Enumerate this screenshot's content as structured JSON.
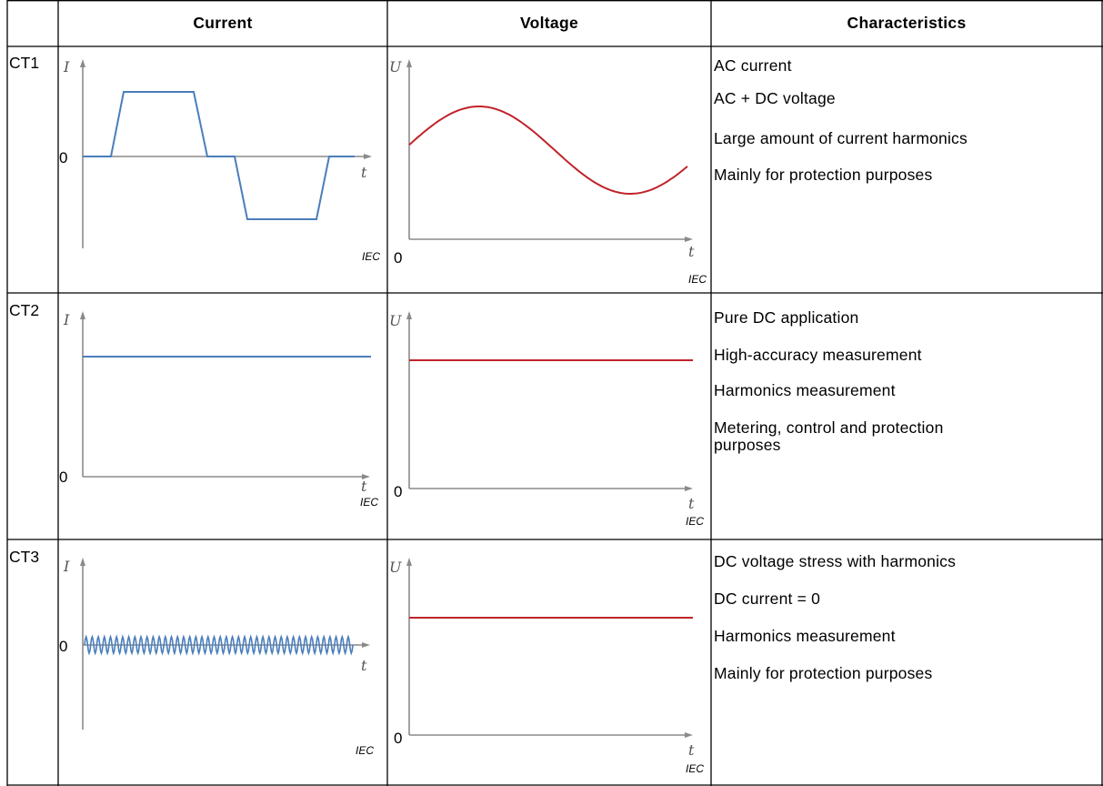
{
  "headers": {
    "current": "Current",
    "voltage": "Voltage",
    "characteristics": "Characteristics"
  },
  "rows": [
    {
      "label": "CT1",
      "current_chart": {
        "axis_y": "I",
        "axis_x": "t",
        "zero": "0",
        "source": "IEC"
      },
      "voltage_chart": {
        "axis_y": "U",
        "axis_x": "t",
        "zero": "0",
        "source": "IEC"
      },
      "characteristics": [
        "AC current",
        "AC + DC voltage",
        "Large amount of current harmonics",
        "Mainly for protection purposes"
      ]
    },
    {
      "label": "CT2",
      "current_chart": {
        "axis_y": "I",
        "axis_x": "t",
        "zero": "0",
        "source": "IEC"
      },
      "voltage_chart": {
        "axis_y": "U",
        "axis_x": "t",
        "zero": "0",
        "source": "IEC"
      },
      "characteristics": [
        "Pure DC application",
        "High-accuracy measurement",
        "Harmonics measurement",
        "Metering, control and protection",
        "purposes"
      ]
    },
    {
      "label": "CT3",
      "current_chart": {
        "axis_y": "I",
        "axis_x": "t",
        "zero": "0",
        "source": "IEC"
      },
      "voltage_chart": {
        "axis_y": "U",
        "axis_x": "t",
        "zero": "0",
        "source": "IEC"
      },
      "characteristics": [
        "DC voltage stress with harmonics",
        "DC current = 0",
        "Harmonics measurement",
        "Mainly for protection purposes"
      ]
    }
  ],
  "colors": {
    "current_trace": "#4a7ebb",
    "voltage_trace": "#c0242a",
    "axis": "#8a8a8a",
    "grid": "#000000"
  }
}
